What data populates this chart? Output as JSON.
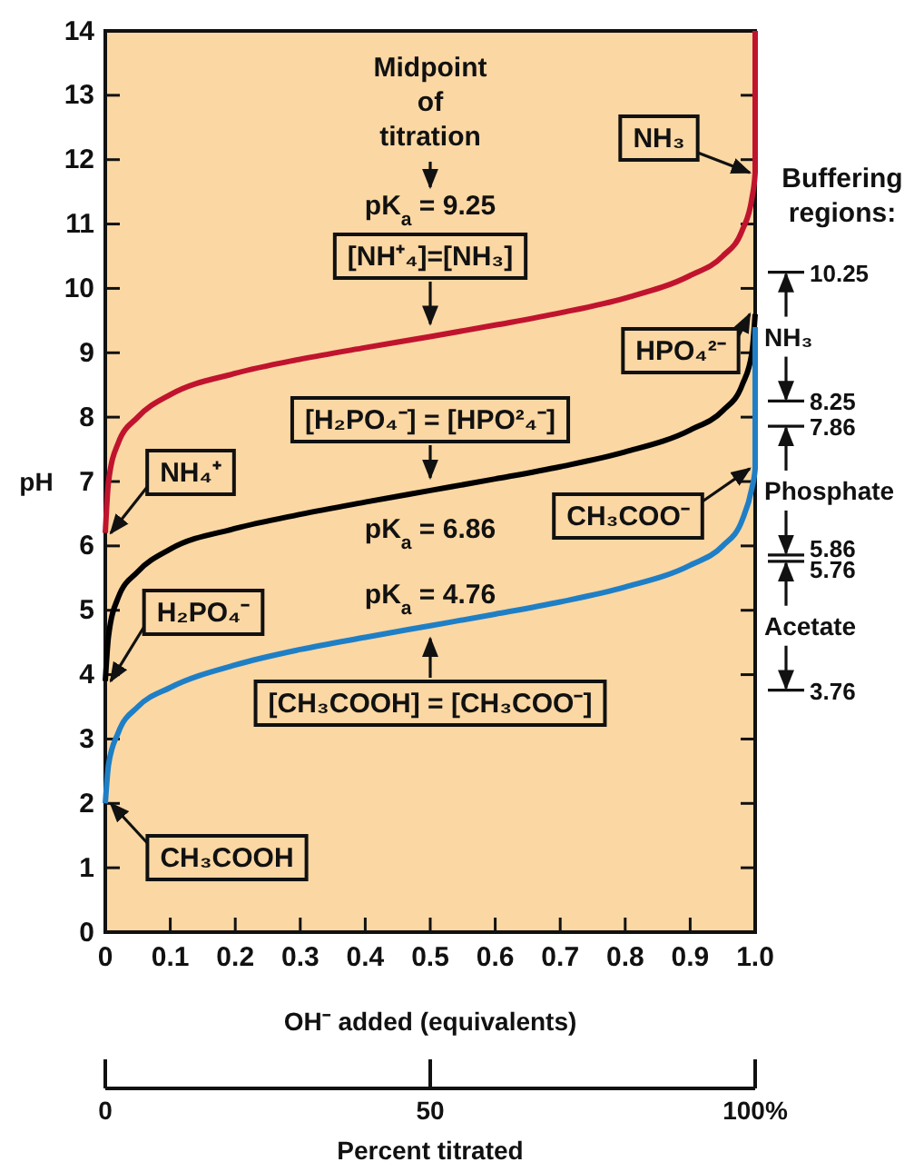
{
  "chart_data": {
    "type": "line",
    "xlabel": "OH⁻ added (equivalents)",
    "ylabel": "pH",
    "xlim": [
      0,
      1
    ],
    "xticks": [
      0,
      0.1,
      0.2,
      0.3,
      0.4,
      0.5,
      0.6,
      0.7,
      0.8,
      0.9,
      {
        "value": 1,
        "label": "1.0"
      }
    ],
    "ylim": [
      0,
      14
    ],
    "yticks": [
      0,
      1,
      2,
      3,
      4,
      5,
      6,
      7,
      8,
      9,
      10,
      11,
      12,
      13,
      14
    ],
    "x2lim": [
      0,
      100
    ],
    "x2ticks": [
      0,
      50,
      {
        "value": 100,
        "label": "100%"
      }
    ],
    "x2label": "Percent titrated",
    "y2lim": [
      0,
      14
    ],
    "y2ticks": [
      10.25,
      8.25,
      7.86,
      5.86,
      5.76,
      3.76
    ],
    "marker": "none",
    "line_style": "solid",
    "series": [
      {
        "color": "#c0142e",
        "x": [
          0,
          0.005,
          0.02,
          0.05,
          0.1,
          0.2,
          0.3,
          0.4,
          0.5,
          0.6,
          0.7,
          0.8,
          0.9,
          0.95,
          0.98,
          0.995,
          1,
          1
        ],
        "values": [
          6.2,
          7.0,
          7.6,
          8.0,
          8.35,
          8.68,
          8.9,
          9.08,
          9.25,
          9.43,
          9.62,
          9.85,
          10.2,
          10.5,
          10.9,
          11.4,
          11.8,
          14
        ]
      },
      {
        "color": "#000000",
        "x": [
          0,
          0.005,
          0.02,
          0.05,
          0.1,
          0.2,
          0.3,
          0.4,
          0.5,
          0.6,
          0.7,
          0.8,
          0.9,
          0.95,
          0.98,
          0.995,
          1
        ],
        "values": [
          3.9,
          4.6,
          5.2,
          5.6,
          5.95,
          6.27,
          6.49,
          6.68,
          6.86,
          7.04,
          7.23,
          7.46,
          7.8,
          8.1,
          8.5,
          9.0,
          9.6
        ]
      },
      {
        "color": "#1f7fc6",
        "x": [
          0,
          0.005,
          0.02,
          0.05,
          0.1,
          0.2,
          0.3,
          0.4,
          0.5,
          0.6,
          0.7,
          0.8,
          0.9,
          0.95,
          0.98,
          0.995,
          1,
          1
        ],
        "values": [
          2.0,
          2.6,
          3.1,
          3.5,
          3.8,
          4.15,
          4.39,
          4.58,
          4.76,
          4.94,
          5.13,
          5.36,
          5.7,
          6.0,
          6.4,
          6.9,
          7.2,
          9.4
        ]
      }
    ],
    "annotations": [
      "Midpoint of titration",
      "pK$_{a}$ = 9.25",
      {
        "text": "[NH⁺₄]=[NH₃]",
        "x": 0.5,
        "y": 9.25
      },
      {
        "text": "[H₂PO₄⁻] = [HPO²₄⁻]",
        "x": 0.5,
        "y": 6.86
      },
      "pK$_{a}$ = 6.86",
      "pK$_{a}$ = 4.76",
      {
        "text": "[CH₃COOH] = [CH₃COO⁻]",
        "x": 0.5,
        "y": 4.76
      },
      {
        "text": "NH₄⁺",
        "x": 0,
        "y": 6.2
      },
      {
        "text": "H₂PO₄⁻",
        "x": 0,
        "y": 3.9
      },
      {
        "text": "CH₃COOH",
        "x": 0,
        "y": 2
      },
      {
        "text": "NH₃",
        "x": 1,
        "y": 11.8
      },
      {
        "text": "HPO₄²⁻",
        "x": 1,
        "y": 9.6
      },
      {
        "text": "CH₃COO⁻",
        "x": 1,
        "y": 7.2
      },
      "Buffering regions:",
      "NH₃",
      "Phosphate",
      "Acetate"
    ]
  }
}
